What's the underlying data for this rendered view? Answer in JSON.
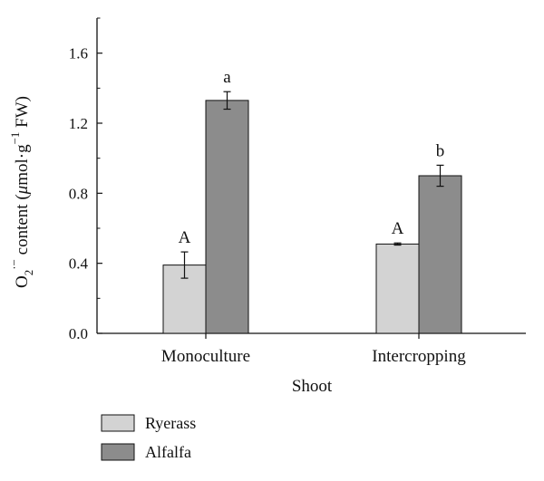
{
  "chart_data": {
    "type": "bar",
    "categories": [
      "Monoculture",
      "Intercropping"
    ],
    "series": [
      {
        "name": "Ryerass",
        "values": [
          0.39,
          0.51
        ],
        "errors": [
          0.075,
          0.006
        ],
        "labels": [
          "A",
          "A"
        ],
        "color": "#d3d3d3"
      },
      {
        "name": "Alfalfa",
        "values": [
          1.33,
          0.9
        ],
        "errors": [
          0.05,
          0.06
        ],
        "labels": [
          "a",
          "b"
        ],
        "color": "#8c8c8c"
      }
    ],
    "yticks": [
      "0.0",
      "0.4",
      "0.8",
      "1.2",
      "1.6"
    ],
    "ylim": [
      0,
      1.8
    ],
    "xlabel": "Shoot",
    "ylabel": {
      "prefix": "O",
      "sub": "2",
      "sup": "·−",
      "middle": " content (",
      "mu": "μ",
      "unit": "mol·g",
      "unit_sup": "−1",
      "suffix": " FW)"
    },
    "legend_position": "bottom-left",
    "grid": false
  }
}
